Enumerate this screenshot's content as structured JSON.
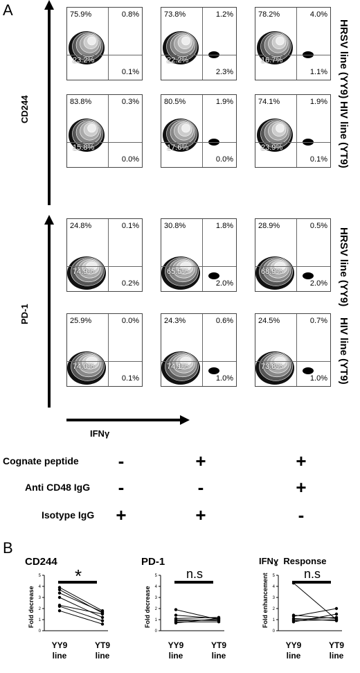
{
  "panel_a_label": "A",
  "panel_b_label": "B",
  "panel_a": {
    "y_axis_labels": [
      "CD244",
      "PD-1"
    ],
    "x_axis_label": "IFNγ",
    "row_labels": [
      "HRSV line (YY9)",
      "HIV line (YT9)",
      "HRSV line (YY9)",
      "HIV line (YT9)"
    ],
    "plots": [
      [
        {
          "ul": "75.9%",
          "ur": "0.8%",
          "ll": "23.2%",
          "lr": "0.1%"
        },
        {
          "ul": "73.8%",
          "ur": "1.2%",
          "ll": "22.2%",
          "lr": "2.3%"
        },
        {
          "ul": "78.2%",
          "ur": "4.0%",
          "ll": "16.7%",
          "lr": "1.1%"
        }
      ],
      [
        {
          "ul": "83.8%",
          "ur": "0.3%",
          "ll": "15.8%",
          "lr": "0.0%"
        },
        {
          "ul": "80.5%",
          "ur": "1.9%",
          "ll": "17.6%",
          "lr": "0.0%"
        },
        {
          "ul": "74.1%",
          "ur": "1.9%",
          "ll": "23.9%",
          "lr": "0.1%"
        }
      ],
      [
        {
          "ul": "24.8%",
          "ur": "0.1%",
          "ll": "74.9%",
          "lr": "0.2%"
        },
        {
          "ul": "30.8%",
          "ur": "1.8%",
          "ll": "65.5%",
          "lr": "2.0%"
        },
        {
          "ul": "28.9%",
          "ur": "0.5%",
          "ll": "68.9%",
          "lr": "2.0%"
        }
      ],
      [
        {
          "ul": "25.9%",
          "ur": "0.0%",
          "ll": "74.0%",
          "lr": "0.1%"
        },
        {
          "ul": "24.3%",
          "ur": "0.6%",
          "ll": "74.1%",
          "lr": "1.0%"
        },
        {
          "ul": "24.5%",
          "ur": "0.7%",
          "ll": "73.8%",
          "lr": "1.0%"
        }
      ]
    ],
    "conditions": [
      {
        "label": "Cognate peptide",
        "values": [
          "-",
          "+",
          "+"
        ]
      },
      {
        "label": "Anti CD48 IgG",
        "values": [
          "-",
          "-",
          "+"
        ]
      },
      {
        "label": "Isotype IgG",
        "values": [
          "+",
          "+",
          "-"
        ]
      }
    ]
  },
  "chart_data": [
    {
      "type": "line",
      "title": "CD244",
      "ylabel": "Fold decrease",
      "categories": [
        "YY9 line",
        "YT9 line"
      ],
      "ylim": [
        0,
        5
      ],
      "yticks": [
        "0",
        "1",
        "2",
        "3",
        "4",
        "5"
      ],
      "annotation": "*",
      "series": [
        {
          "values": [
            3.9,
            1.8
          ]
        },
        {
          "values": [
            3.7,
            1.6
          ]
        },
        {
          "values": [
            3.4,
            1.7
          ]
        },
        {
          "values": [
            3.0,
            1.2
          ]
        },
        {
          "values": [
            2.3,
            1.5
          ]
        },
        {
          "values": [
            2.2,
            0.9
          ]
        },
        {
          "values": [
            1.8,
            0.6
          ]
        }
      ]
    },
    {
      "type": "line",
      "title": "PD-1",
      "ylabel": "Fold decrease",
      "categories": [
        "YY9 line",
        "YT9 line"
      ],
      "ylim": [
        0,
        5
      ],
      "yticks": [
        "0",
        "1",
        "2",
        "3",
        "4",
        "5"
      ],
      "annotation": "n.s",
      "series": [
        {
          "values": [
            1.9,
            1.0
          ]
        },
        {
          "values": [
            1.4,
            1.1
          ]
        },
        {
          "values": [
            1.1,
            1.2
          ]
        },
        {
          "values": [
            1.0,
            0.9
          ]
        },
        {
          "values": [
            0.9,
            1.0
          ]
        },
        {
          "values": [
            0.8,
            0.8
          ]
        },
        {
          "values": [
            0.7,
            1.1
          ]
        }
      ]
    },
    {
      "type": "line",
      "title": "IFNɣ  Response",
      "ylabel": "Fold enhancement",
      "categories": [
        "YY9 line",
        "YT9 line"
      ],
      "ylim": [
        0,
        5
      ],
      "yticks": [
        "0",
        "1",
        "2",
        "3",
        "4",
        "5"
      ],
      "annotation": "n.s",
      "series": [
        {
          "values": [
            4.3,
            1.0
          ]
        },
        {
          "values": [
            1.4,
            1.1
          ]
        },
        {
          "values": [
            1.3,
            2.0
          ]
        },
        {
          "values": [
            1.1,
            0.9
          ]
        },
        {
          "values": [
            1.0,
            1.2
          ]
        },
        {
          "values": [
            0.9,
            1.0
          ]
        },
        {
          "values": [
            0.8,
            1.5
          ]
        }
      ]
    }
  ]
}
